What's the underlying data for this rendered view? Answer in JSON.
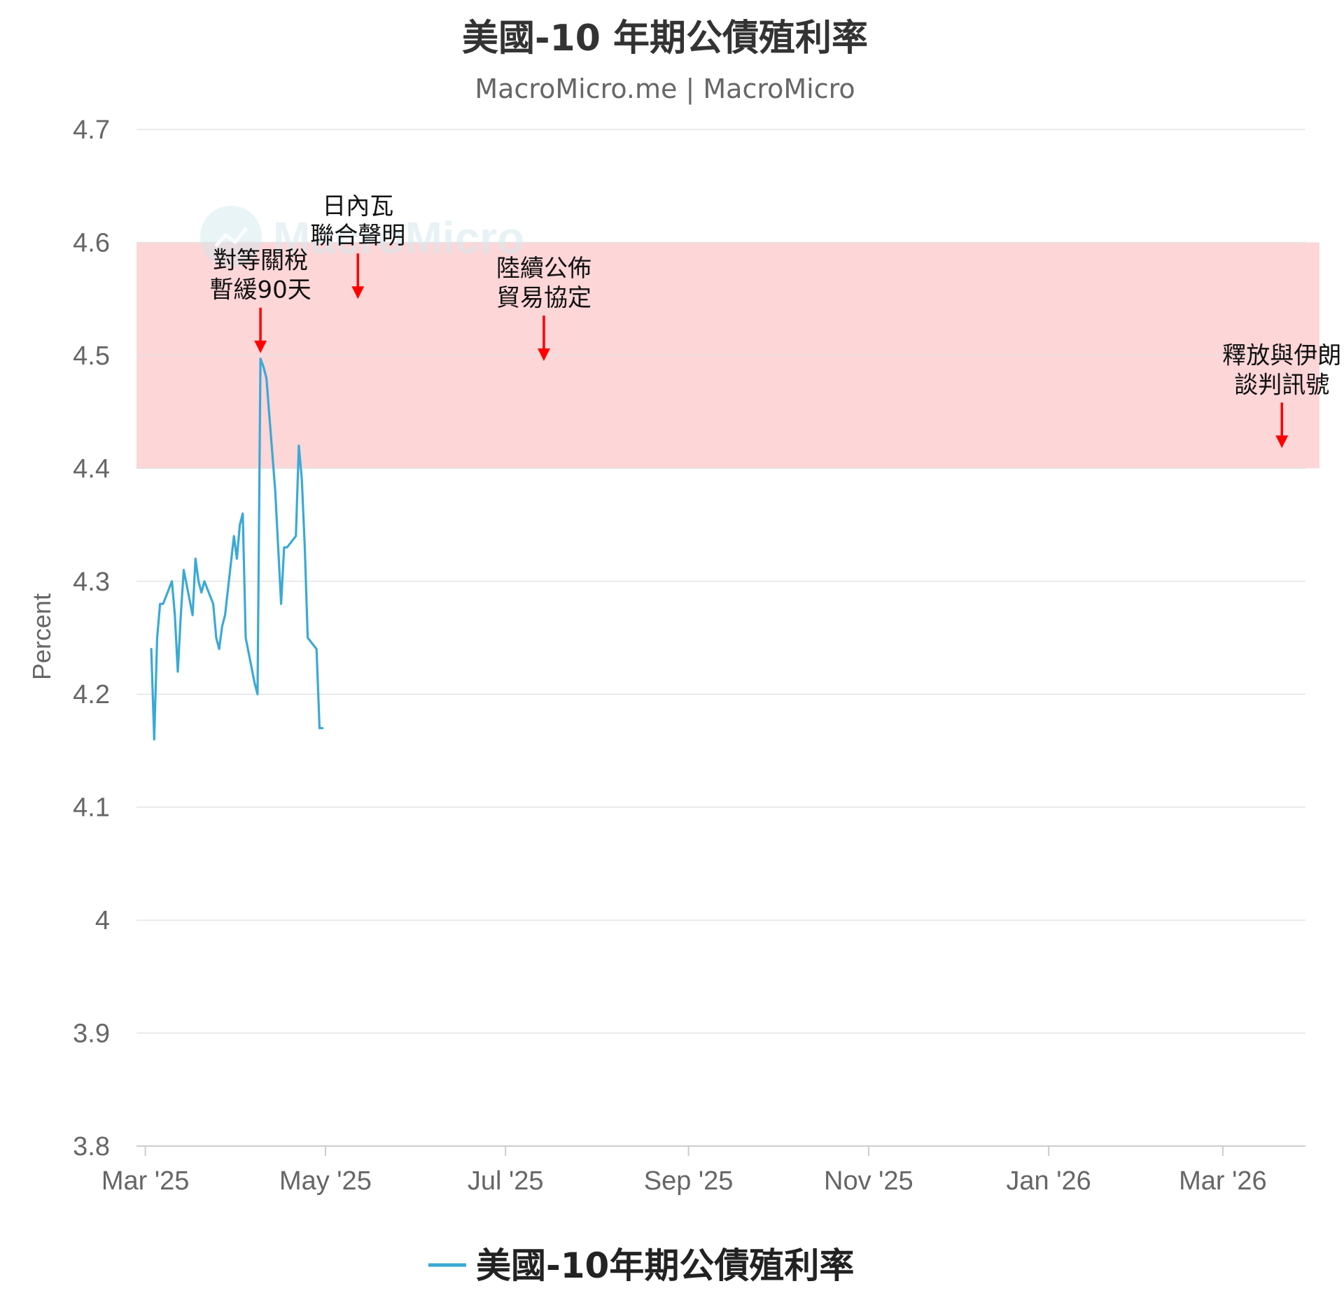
{
  "chart_data": {
    "type": "line",
    "title": "美國-10 年期公債殖利率",
    "subtitle": "MacroMicro.me | MacroMicro",
    "watermark": "MacroMicro",
    "ylabel": "Percent",
    "ylim": [
      3.8,
      4.7
    ],
    "yticks": [
      "4.7",
      "4.6",
      "4.5",
      "4.4",
      "4.3",
      "4.2",
      "4.1",
      "4",
      "3.9",
      "3.8"
    ],
    "ytick_values": [
      4.7,
      4.6,
      4.5,
      4.4,
      4.3,
      4.2,
      4.1,
      4.0,
      3.9,
      3.8
    ],
    "xlim": [
      "2025-02-26",
      "2026-03-29"
    ],
    "xticks": [
      {
        "label": "Mar '25",
        "date": "2025-03-01"
      },
      {
        "label": "May '25",
        "date": "2025-05-01"
      },
      {
        "label": "Jul '25",
        "date": "2025-07-01"
      },
      {
        "label": "Sep '25",
        "date": "2025-09-01"
      },
      {
        "label": "Nov '25",
        "date": "2025-11-01"
      },
      {
        "label": "Jan '26",
        "date": "2026-01-01"
      },
      {
        "label": "Mar '26",
        "date": "2026-03-01"
      }
    ],
    "grid": true,
    "shaded_band": {
      "y_from": 4.4,
      "y_to": 4.6,
      "color": "#fdd6d8"
    },
    "legend": {
      "position": "bottom-center",
      "label": "美國-10年期公債殖利率"
    },
    "colors": {
      "line": "#3aa9d6",
      "arrow": "#ff0000",
      "grid": "#e3e3e3",
      "band": "#fdd6d8"
    },
    "annotations": [
      {
        "lines": [
          "對等關稅",
          "暫緩90天"
        ],
        "date": "2025-04-09",
        "value": 4.497
      },
      {
        "lines": [
          "日內瓦",
          "聯合聲明"
        ],
        "date": "2025-05-12",
        "value": 4.545
      },
      {
        "lines": [
          "陸續公佈",
          "貿易協定"
        ],
        "date": "2025-07-14",
        "value": 4.49
      },
      {
        "lines": [
          "釋放與伊朗",
          "談判訊號"
        ],
        "date": "2026-03-21",
        "value": 4.413
      }
    ],
    "series": [
      {
        "name": "美國-10年期公債殖利率",
        "points": [
          [
            "2025-03-03",
            4.24
          ],
          [
            "2025-03-04",
            4.16
          ],
          [
            "2025-03-05",
            4.25
          ],
          [
            "2025-03-06",
            4.28
          ],
          [
            "2025-03-07",
            4.28
          ],
          [
            "2025-03-10",
            4.3
          ],
          [
            "2025-03-11",
            4.27
          ],
          [
            "2025-03-12",
            4.22
          ],
          [
            "2025-03-13",
            4.27
          ],
          [
            "2025-03-14",
            4.31
          ],
          [
            "2025-03-17",
            4.27
          ],
          [
            "2025-03-18",
            4.32
          ],
          [
            "2025-03-19",
            4.3
          ],
          [
            "2025-03-20",
            4.29
          ],
          [
            "2025-03-21",
            4.3
          ],
          [
            "2025-03-24",
            4.28
          ],
          [
            "2025-03-25",
            4.25
          ],
          [
            "2025-03-26",
            4.24
          ],
          [
            "2025-03-27",
            4.26
          ],
          [
            "2025-03-28",
            4.27
          ],
          [
            "2025-03-31",
            4.34
          ],
          [
            "2025-04-01",
            4.32
          ],
          [
            "2025-04-02",
            4.35
          ],
          [
            "2025-04-03",
            4.36
          ],
          [
            "2025-04-04",
            4.25
          ],
          [
            "2025-04-07",
            4.21
          ],
          [
            "2025-04-08",
            4.2
          ],
          [
            "2025-04-09",
            4.497
          ],
          [
            "2025-04-10",
            4.49
          ],
          [
            "2025-04-11",
            4.48
          ],
          [
            "2025-04-14",
            4.38
          ],
          [
            "2025-04-15",
            4.33
          ],
          [
            "2025-04-16",
            4.28
          ],
          [
            "2025-04-17",
            4.33
          ],
          [
            "2025-04-18",
            4.33
          ],
          [
            "2025-04-21",
            4.34
          ],
          [
            "2025-04-22",
            4.42
          ],
          [
            "2025-04-23",
            4.39
          ],
          [
            "2025-04-24",
            4.33
          ],
          [
            "2025-04-25",
            4.25
          ],
          [
            "2025-04-28",
            4.24
          ],
          [
            "2025-04-29",
            4.17
          ],
          [
            "2025-04-30",
            4.17
          ],
          [
            "2025-03-19",
            4.3
          ]
        ]
      }
    ]
  }
}
